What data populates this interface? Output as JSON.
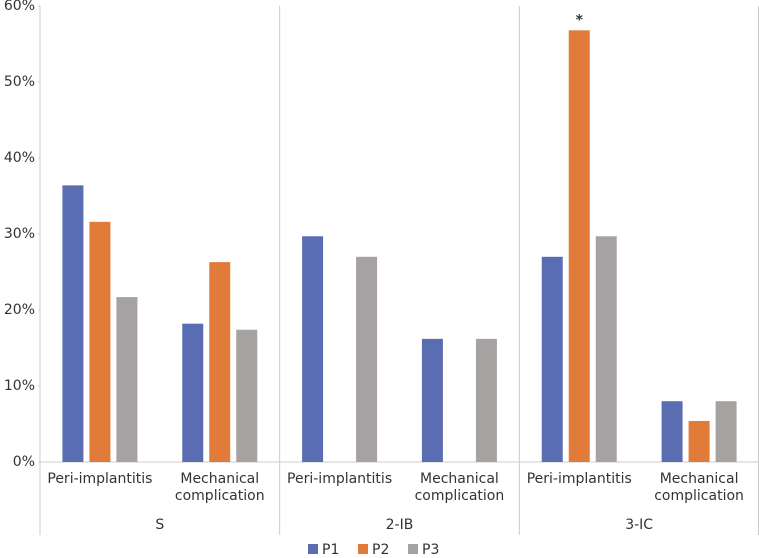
{
  "chart_data": {
    "type": "bar",
    "groups": [
      "S",
      "2-IB",
      "3-IC"
    ],
    "categories": [
      "Peri-implantitis",
      "Mechanical complication",
      "Peri-implantitis",
      "Mechanical complication",
      "Peri-implantitis",
      "Mechanical complication"
    ],
    "series": [
      {
        "name": "P1",
        "color": "#5b6db2",
        "values": [
          36.4,
          18.2,
          29.7,
          16.2,
          27.0,
          8.0
        ]
      },
      {
        "name": "P2",
        "color": "#e07b39",
        "values": [
          31.6,
          26.3,
          null,
          null,
          56.8,
          5.4
        ]
      },
      {
        "name": "P3",
        "color": "#a5a2a1",
        "values": [
          21.7,
          17.4,
          27.0,
          16.2,
          29.7,
          8.0
        ]
      }
    ],
    "ylim": [
      0,
      60
    ],
    "yticks": [
      {
        "value": 0,
        "label": "0%"
      },
      {
        "value": 10,
        "label": "10%"
      },
      {
        "value": 20,
        "label": "20%"
      },
      {
        "value": 30,
        "label": "30%"
      },
      {
        "value": 40,
        "label": "40%"
      },
      {
        "value": 50,
        "label": "50%"
      },
      {
        "value": 60,
        "label": "60%"
      }
    ],
    "annotations": [
      {
        "text": "*",
        "series": 1,
        "index": 4
      }
    ],
    "legend": "bottom"
  }
}
